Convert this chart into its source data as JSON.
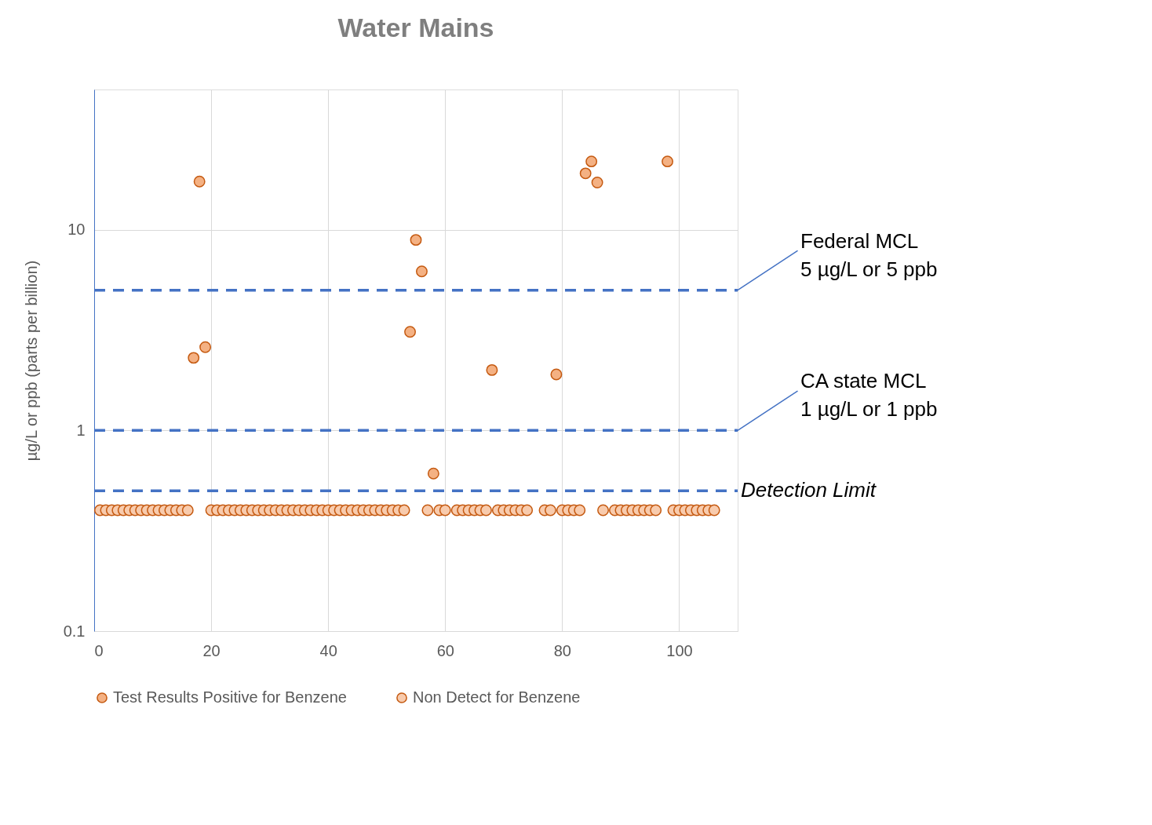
{
  "chart_data": {
    "type": "scatter",
    "title": "Water Mains",
    "ylabel": "µg/L or ppb (parts per billion)",
    "xlim": [
      0,
      110
    ],
    "xticks": [
      0,
      20,
      40,
      60,
      80,
      100
    ],
    "ylim": [
      0.1,
      50
    ],
    "yticks": [
      0.1,
      1,
      10
    ],
    "log": "y",
    "grid": true,
    "legend": "bottom",
    "marker": "circle",
    "series": [
      {
        "name": "Test Results Positive for Benzene",
        "color": "#f4b183",
        "x": [
          17,
          18,
          19,
          54,
          55,
          56,
          58,
          68,
          79,
          84,
          85,
          86,
          98
        ],
        "values": [
          2.3,
          17.4,
          2.6,
          3.1,
          8.9,
          6.2,
          0.61,
          2.0,
          1.9,
          19.1,
          21.9,
          17.2,
          21.9
        ]
      },
      {
        "name": "Non Detect for Benzene",
        "color": "#f8cbad",
        "x": [
          1,
          2,
          3,
          4,
          5,
          6,
          7,
          8,
          9,
          10,
          11,
          12,
          13,
          14,
          15,
          16,
          20,
          21,
          22,
          23,
          24,
          25,
          26,
          27,
          28,
          29,
          30,
          31,
          32,
          33,
          34,
          35,
          36,
          37,
          38,
          39,
          40,
          41,
          42,
          43,
          44,
          45,
          46,
          47,
          48,
          49,
          50,
          51,
          52,
          53,
          57,
          59,
          60,
          62,
          63,
          64,
          65,
          66,
          67,
          69,
          70,
          71,
          72,
          73,
          74,
          77,
          78,
          80,
          81,
          82,
          83,
          87,
          89,
          90,
          91,
          92,
          93,
          94,
          95,
          96,
          99,
          100,
          101,
          102,
          103,
          104,
          105,
          106
        ],
        "values": [
          0.4,
          0.4,
          0.4,
          0.4,
          0.4,
          0.4,
          0.4,
          0.4,
          0.4,
          0.4,
          0.4,
          0.4,
          0.4,
          0.4,
          0.4,
          0.4,
          0.4,
          0.4,
          0.4,
          0.4,
          0.4,
          0.4,
          0.4,
          0.4,
          0.4,
          0.4,
          0.4,
          0.4,
          0.4,
          0.4,
          0.4,
          0.4,
          0.4,
          0.4,
          0.4,
          0.4,
          0.4,
          0.4,
          0.4,
          0.4,
          0.4,
          0.4,
          0.4,
          0.4,
          0.4,
          0.4,
          0.4,
          0.4,
          0.4,
          0.4,
          0.4,
          0.4,
          0.4,
          0.4,
          0.4,
          0.4,
          0.4,
          0.4,
          0.4,
          0.4,
          0.4,
          0.4,
          0.4,
          0.4,
          0.4,
          0.4,
          0.4,
          0.4,
          0.4,
          0.4,
          0.4,
          0.4,
          0.4,
          0.4,
          0.4,
          0.4,
          0.4,
          0.4,
          0.4,
          0.4,
          0.4,
          0.4,
          0.4,
          0.4,
          0.4,
          0.4,
          0.4,
          0.4
        ]
      }
    ],
    "ref_lines": [
      {
        "axis": "y",
        "value": 5,
        "label": "Federal MCL\n5 µg/L or 5 ppb",
        "color": "#4472c4",
        "line_style": "dashed"
      },
      {
        "axis": "y",
        "value": 1,
        "label": "CA state MCL\n1 µg/L or 1 ppb",
        "color": "#4472c4",
        "line_style": "dashed"
      },
      {
        "axis": "y",
        "value": 0.5,
        "label": "Detection Limit",
        "color": "#4472c4",
        "line_style": "dashed"
      }
    ]
  }
}
